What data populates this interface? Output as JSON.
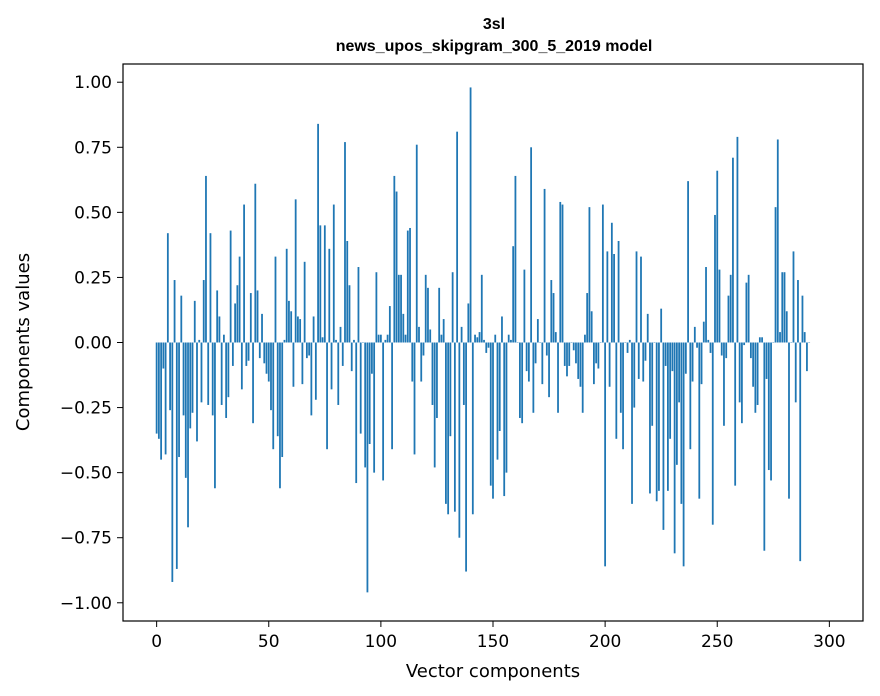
{
  "chart_data": {
    "type": "bar",
    "title": "3sl",
    "subtitle": "news_upos_skipgram_300_5_2019 model",
    "xlabel": "Vector components",
    "ylabel": "Components values",
    "xlim": [
      -15,
      315
    ],
    "ylim": [
      -1.07,
      1.07
    ],
    "xticks": [
      0,
      50,
      100,
      150,
      200,
      250,
      300
    ],
    "xtick_labels": [
      "0",
      "50",
      "100",
      "150",
      "200",
      "250",
      "300"
    ],
    "yticks": [
      1.0,
      0.75,
      0.5,
      0.25,
      0.0,
      -0.25,
      -0.5,
      -0.75,
      -1.0
    ],
    "ytick_labels": [
      "1.00",
      "0.75",
      "0.50",
      "0.25",
      "0.00",
      "−0.25",
      "−0.50",
      "−0.75",
      "−1.00"
    ],
    "bar_color": "#1f77b4",
    "values": [
      -0.35,
      -0.37,
      -0.45,
      -0.1,
      -0.43,
      0.42,
      -0.26,
      -0.92,
      0.24,
      -0.87,
      -0.44,
      0.18,
      -0.28,
      -0.52,
      -0.71,
      -0.33,
      -0.27,
      0.16,
      -0.38,
      0.01,
      -0.23,
      0.24,
      0.64,
      -0.24,
      0.42,
      -0.28,
      -0.56,
      0.2,
      0.1,
      -0.24,
      0.03,
      -0.29,
      -0.21,
      0.43,
      -0.09,
      0.15,
      0.22,
      0.33,
      -0.18,
      0.53,
      -0.09,
      -0.07,
      0.19,
      -0.31,
      0.61,
      0.2,
      -0.06,
      0.11,
      -0.08,
      -0.12,
      -0.15,
      -0.26,
      -0.41,
      0.33,
      -0.36,
      -0.56,
      -0.44,
      0.01,
      0.36,
      0.16,
      0.12,
      -0.17,
      0.55,
      0.1,
      0.09,
      -0.16,
      0.31,
      -0.06,
      -0.05,
      -0.28,
      0.1,
      -0.22,
      0.84,
      0.45,
      0.02,
      0.45,
      -0.41,
      0.36,
      -0.18,
      0.53,
      0.01,
      -0.24,
      0.06,
      -0.09,
      0.77,
      0.39,
      0.22,
      -0.11,
      0.01,
      -0.54,
      0.29,
      -0.35,
      0.0,
      -0.48,
      -0.96,
      -0.39,
      -0.12,
      -0.5,
      0.27,
      0.03,
      0.03,
      -0.53,
      0.01,
      0.03,
      0.14,
      -0.41,
      0.64,
      0.58,
      0.26,
      0.26,
      0.11,
      0.03,
      0.43,
      0.44,
      -0.15,
      -0.43,
      0.76,
      0.06,
      -0.15,
      -0.05,
      0.26,
      0.21,
      0.05,
      -0.24,
      -0.48,
      -0.29,
      0.21,
      0.03,
      0.09,
      -0.62,
      -0.66,
      -0.36,
      0.27,
      -0.65,
      0.81,
      -0.75,
      0.06,
      -0.24,
      -0.88,
      0.15,
      0.98,
      -0.66,
      0.03,
      0.02,
      0.04,
      0.26,
      0.01,
      -0.04,
      -0.02,
      -0.55,
      -0.6,
      0.03,
      -0.45,
      -0.34,
      0.1,
      -0.59,
      -0.5,
      0.03,
      0.01,
      0.37,
      0.64,
      0.0,
      -0.29,
      -0.31,
      0.28,
      -0.11,
      -0.15,
      0.75,
      -0.27,
      -0.08,
      0.09,
      0.0,
      -0.16,
      0.59,
      -0.05,
      -0.21,
      0.24,
      0.19,
      0.04,
      -0.27,
      0.54,
      0.53,
      -0.09,
      -0.13,
      -0.09,
      0.0,
      -0.03,
      -0.08,
      -0.14,
      -0.17,
      -0.27,
      0.03,
      0.19,
      0.52,
      0.12,
      -0.16,
      -0.08,
      -0.1,
      0.0,
      0.53,
      -0.86,
      0.35,
      -0.17,
      0.46,
      0.34,
      -0.37,
      0.39,
      -0.27,
      -0.41,
      0.0,
      -0.04,
      0.01,
      -0.62,
      -0.25,
      0.35,
      -0.14,
      0.33,
      -0.15,
      -0.07,
      0.11,
      -0.58,
      -0.32,
      0.0,
      -0.61,
      -0.57,
      0.13,
      -0.72,
      -0.09,
      -0.57,
      -0.37,
      -0.11,
      -0.81,
      -0.47,
      -0.23,
      -0.62,
      -0.86,
      -0.12,
      0.62,
      -0.41,
      -0.15,
      0.06,
      -0.02,
      -0.6,
      -0.16,
      0.08,
      0.29,
      0.01,
      -0.04,
      -0.7,
      0.49,
      0.66,
      0.28,
      -0.05,
      -0.32,
      -0.06,
      0.18,
      0.26,
      0.71,
      -0.55,
      0.79,
      -0.23,
      -0.31,
      -0.01,
      0.23,
      0.26,
      -0.06,
      -0.17,
      -0.27,
      -0.24,
      0.02,
      0.02,
      -0.8,
      -0.14,
      -0.49,
      -0.53,
      0.0,
      0.52,
      0.78,
      0.04,
      0.27,
      0.27,
      0.12,
      -0.6,
      0.0,
      0.35,
      -0.23,
      0.24,
      -0.84,
      0.18,
      0.04,
      -0.11,
      0.0
    ]
  }
}
